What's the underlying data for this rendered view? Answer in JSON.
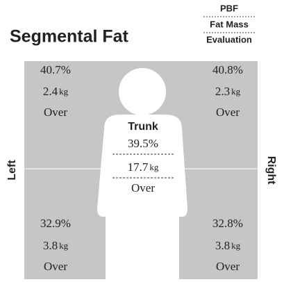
{
  "title": "Segmental Fat",
  "legend": [
    "PBF",
    "Fat Mass",
    "Evaluation"
  ],
  "side_labels": {
    "left": "Left",
    "right": "Right"
  },
  "segments": {
    "left_arm": {
      "pbf": "40.7%",
      "fat_mass": "2.4",
      "unit": "kg",
      "evaluation": "Over"
    },
    "right_arm": {
      "pbf": "40.8%",
      "fat_mass": "2.3",
      "unit": "kg",
      "evaluation": "Over"
    },
    "trunk": {
      "name": "Trunk",
      "pbf": "39.5%",
      "fat_mass": "17.7",
      "unit": "kg",
      "evaluation": "Over"
    },
    "left_leg": {
      "pbf": "32.9%",
      "fat_mass": "3.8",
      "unit": "kg",
      "evaluation": "Over"
    },
    "right_leg": {
      "pbf": "32.8%",
      "fat_mass": "3.8",
      "unit": "kg",
      "evaluation": "Over"
    }
  }
}
